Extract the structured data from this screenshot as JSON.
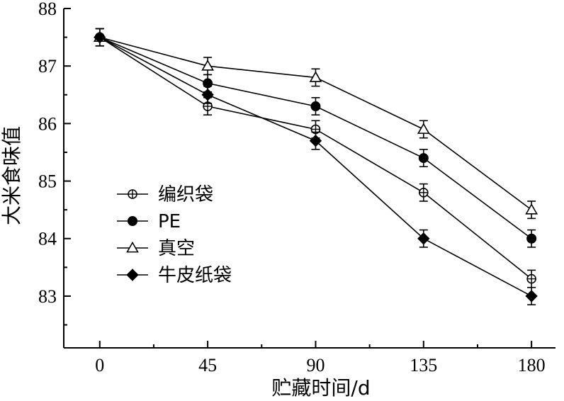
{
  "chart_data": {
    "type": "line",
    "title": "",
    "xlabel": "贮藏时间/d",
    "ylabel": "大米食味值",
    "x": [
      0,
      45,
      90,
      135,
      180
    ],
    "xlim": [
      -15,
      190
    ],
    "ylim": [
      82.1,
      88
    ],
    "xticks": [
      0,
      45,
      90,
      135,
      180
    ],
    "yticks": [
      83,
      84,
      85,
      86,
      87,
      88
    ],
    "grid": false,
    "legend_position": "lower-left",
    "series": [
      {
        "name": "编织袋",
        "marker": "circle-plus",
        "values": [
          87.5,
          86.3,
          85.9,
          84.8,
          83.3
        ],
        "errors": [
          0.15,
          0.15,
          0.15,
          0.15,
          0.15
        ]
      },
      {
        "name": "PE",
        "marker": "filled-circle",
        "values": [
          87.5,
          86.7,
          86.3,
          85.4,
          84.0
        ],
        "errors": [
          0.15,
          0.15,
          0.15,
          0.15,
          0.15
        ]
      },
      {
        "name": "真空",
        "marker": "open-triangle",
        "values": [
          87.5,
          87.0,
          86.8,
          85.9,
          84.5
        ],
        "errors": [
          0.15,
          0.15,
          0.15,
          0.15,
          0.15
        ]
      },
      {
        "name": "牛皮纸袋",
        "marker": "filled-diamond",
        "values": [
          87.5,
          86.5,
          85.7,
          84.0,
          83.0
        ],
        "errors": [
          0.15,
          0.15,
          0.15,
          0.15,
          0.15
        ]
      }
    ]
  }
}
